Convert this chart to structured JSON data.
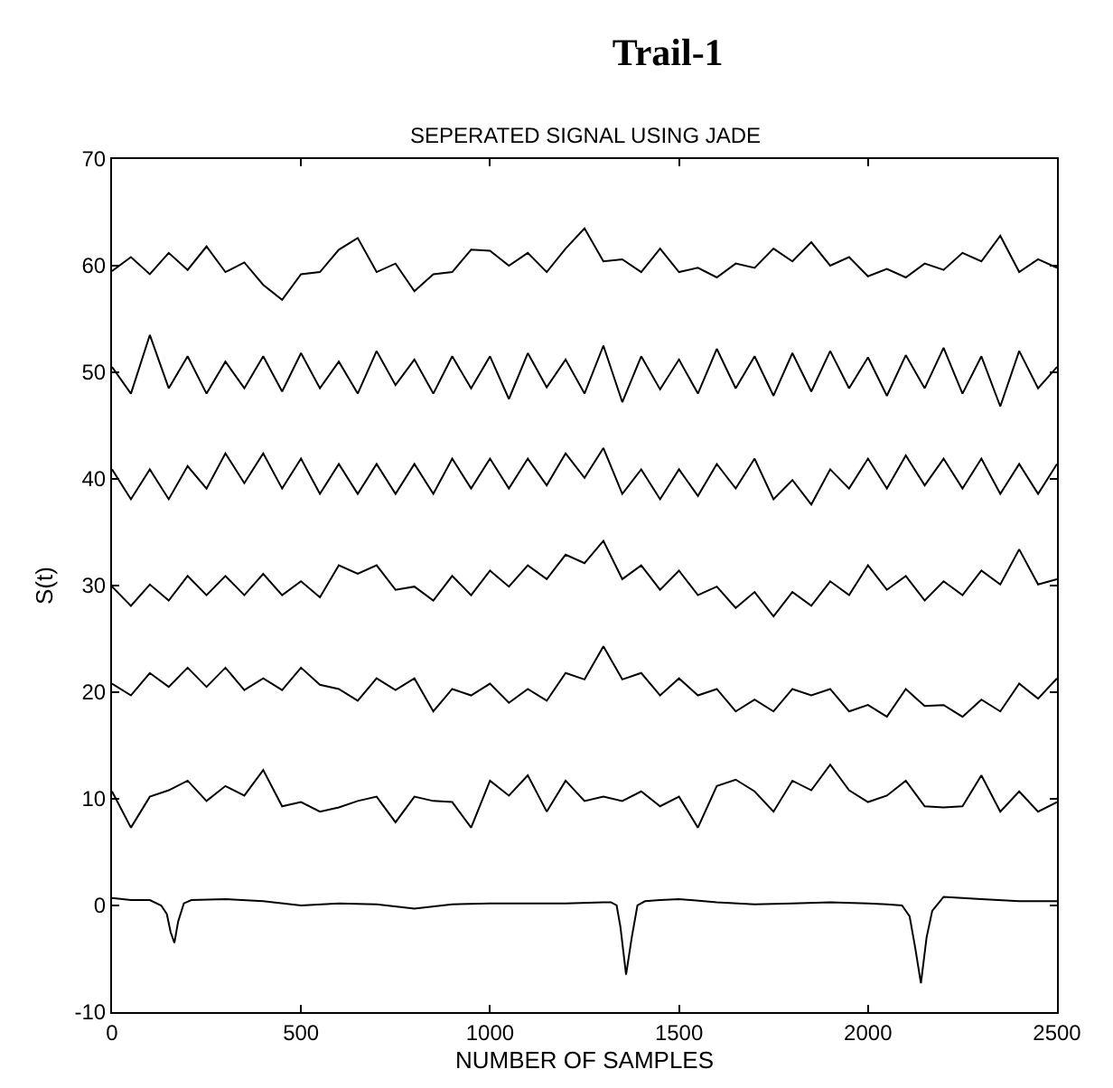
{
  "chart_data": {
    "type": "line",
    "title": "Trail-1",
    "subtitle": "SEPERATED SIGNAL USING JADE",
    "xlabel": "NUMBER OF SAMPLES",
    "ylabel": "S(t)",
    "x": [
      0,
      50,
      100,
      150,
      200,
      250,
      300,
      350,
      400,
      450,
      500,
      550,
      600,
      650,
      700,
      750,
      800,
      850,
      900,
      950,
      1000,
      1050,
      1100,
      1150,
      1200,
      1250,
      1300,
      1350,
      1400,
      1450,
      1500,
      1550,
      1600,
      1650,
      1700,
      1750,
      1800,
      1850,
      1900,
      1950,
      2000,
      2050,
      2100,
      2150,
      2200,
      2250,
      2300,
      2350,
      2400,
      2450,
      2500
    ],
    "xlim": [
      0,
      2500
    ],
    "xticks": [
      0,
      500,
      1000,
      1500,
      2000,
      2500
    ],
    "ylim": [
      -10,
      70
    ],
    "yticks": [
      -10,
      0,
      10,
      20,
      30,
      40,
      50,
      60,
      70
    ],
    "grid": false,
    "marker": "none",
    "line_style": "solid",
    "series": [
      {
        "color": "#000000",
        "x": [
          0,
          50,
          100,
          130,
          145,
          155,
          165,
          175,
          190,
          210,
          300,
          400,
          500,
          600,
          700,
          800,
          900,
          1000,
          1100,
          1200,
          1300,
          1320,
          1335,
          1345,
          1360,
          1375,
          1390,
          1410,
          1450,
          1500,
          1600,
          1700,
          1800,
          1900,
          2000,
          2050,
          2090,
          2110,
          2125,
          2140,
          2155,
          2170,
          2200,
          2250,
          2300,
          2400,
          2500
        ],
        "values": [
          0.7,
          0.5,
          0.5,
          0,
          -0.8,
          -2.5,
          -3.5,
          -1.5,
          0.2,
          0.5,
          0.6,
          0.4,
          0,
          0.2,
          0.1,
          -0.3,
          0.1,
          0.2,
          0.2,
          0.2,
          0.3,
          0.3,
          0,
          -2,
          -6.5,
          -3,
          0,
          0.4,
          0.5,
          0.6,
          0.3,
          0.1,
          0.2,
          0.3,
          0.2,
          0.1,
          0,
          -1,
          -4,
          -7.3,
          -3,
          -0.5,
          0.8,
          0.7,
          0.6,
          0.4,
          0.4
        ]
      },
      {
        "color": "#000000",
        "values": [
          10.7,
          7.3,
          10.2,
          10.8,
          11.7,
          9.8,
          11.2,
          10.3,
          12.7,
          9.3,
          9.7,
          8.8,
          9.2,
          9.8,
          10.2,
          7.8,
          10.2,
          9.8,
          9.7,
          7.3,
          11.7,
          10.3,
          12.2,
          8.8,
          11.7,
          9.8,
          10.2,
          9.8,
          10.7,
          9.3,
          10.2,
          7.3,
          11.2,
          11.8,
          10.7,
          8.8,
          11.7,
          10.8,
          13.2,
          10.8,
          9.7,
          10.3,
          11.7,
          9.3,
          9.2,
          9.3,
          12.2,
          8.8,
          10.7,
          8.8,
          9.7
        ]
      },
      {
        "color": "#000000",
        "values": [
          20.8,
          19.7,
          21.8,
          20.5,
          22.3,
          20.5,
          22.3,
          20.2,
          21.3,
          20.2,
          22.3,
          20.7,
          20.3,
          19.2,
          21.3,
          20.2,
          21.3,
          18.2,
          20.3,
          19.7,
          20.8,
          19,
          20.3,
          19.2,
          21.8,
          21.2,
          24.3,
          21.2,
          21.8,
          19.7,
          21.3,
          19.7,
          20.3,
          18.2,
          19.3,
          18.2,
          20.3,
          19.7,
          20.3,
          18.2,
          18.8,
          17.7,
          20.3,
          18.7,
          18.8,
          17.7,
          19.3,
          18.2,
          20.8,
          19.4,
          21.3
        ]
      },
      {
        "color": "#000000",
        "values": [
          29.9,
          28.1,
          30.1,
          28.6,
          30.9,
          29.1,
          30.9,
          29.1,
          31.1,
          29.1,
          30.4,
          28.9,
          31.9,
          31.1,
          31.9,
          29.6,
          29.9,
          28.6,
          30.9,
          29.1,
          31.4,
          29.9,
          31.9,
          30.6,
          32.9,
          32.1,
          34.2,
          30.6,
          31.9,
          29.6,
          31.4,
          29.1,
          29.9,
          27.9,
          29.4,
          27.1,
          29.4,
          28.1,
          30.4,
          29.1,
          31.9,
          29.6,
          30.9,
          28.6,
          30.4,
          29.1,
          31.4,
          30.1,
          33.4,
          30.1,
          30.6
        ]
      },
      {
        "color": "#000000",
        "values": [
          40.9,
          38.1,
          40.9,
          38.1,
          41.2,
          39.1,
          42.4,
          39.6,
          42.4,
          39.1,
          41.9,
          38.6,
          41.4,
          38.6,
          41.4,
          38.6,
          41.4,
          38.6,
          41.9,
          39.1,
          41.9,
          39.1,
          41.9,
          39.4,
          42.4,
          40.1,
          42.9,
          38.6,
          40.9,
          38.1,
          40.9,
          38.4,
          41.4,
          39.1,
          41.9,
          38.1,
          39.9,
          37.6,
          40.9,
          39.1,
          41.9,
          39.1,
          42.2,
          39.4,
          41.9,
          39.1,
          41.9,
          38.6,
          41.4,
          38.6,
          41.4
        ]
      },
      {
        "color": "#000000",
        "values": [
          50.5,
          48,
          53.5,
          48.5,
          51.5,
          48,
          51,
          48.5,
          51.5,
          48.2,
          51.8,
          48.5,
          51,
          48,
          52,
          48.8,
          51.2,
          48,
          51.5,
          48.5,
          51.5,
          47.5,
          51.8,
          48.6,
          51.2,
          48,
          52.5,
          47.2,
          51.5,
          48.4,
          51.2,
          48,
          52.2,
          48.5,
          51.5,
          47.8,
          51.8,
          48.2,
          52,
          48.5,
          51.4,
          47.8,
          51.6,
          48.5,
          52.3,
          48,
          51.5,
          46.8,
          52,
          48.5,
          50.5
        ]
      },
      {
        "color": "#000000",
        "values": [
          59.5,
          60.8,
          59.2,
          61.2,
          59.6,
          61.8,
          59.4,
          60.3,
          58.2,
          56.8,
          59.2,
          59.4,
          61.5,
          62.6,
          59.4,
          60.2,
          57.6,
          59.2,
          59.4,
          61.5,
          61.4,
          60,
          61.2,
          59.4,
          61.6,
          63.5,
          60.4,
          60.6,
          59.4,
          61.6,
          59.4,
          59.8,
          58.9,
          60.2,
          59.8,
          61.6,
          60.4,
          62.2,
          60,
          60.8,
          59,
          59.7,
          58.9,
          60.2,
          59.6,
          61.2,
          60.4,
          62.8,
          59.4,
          60.6,
          59.8
        ]
      }
    ]
  }
}
